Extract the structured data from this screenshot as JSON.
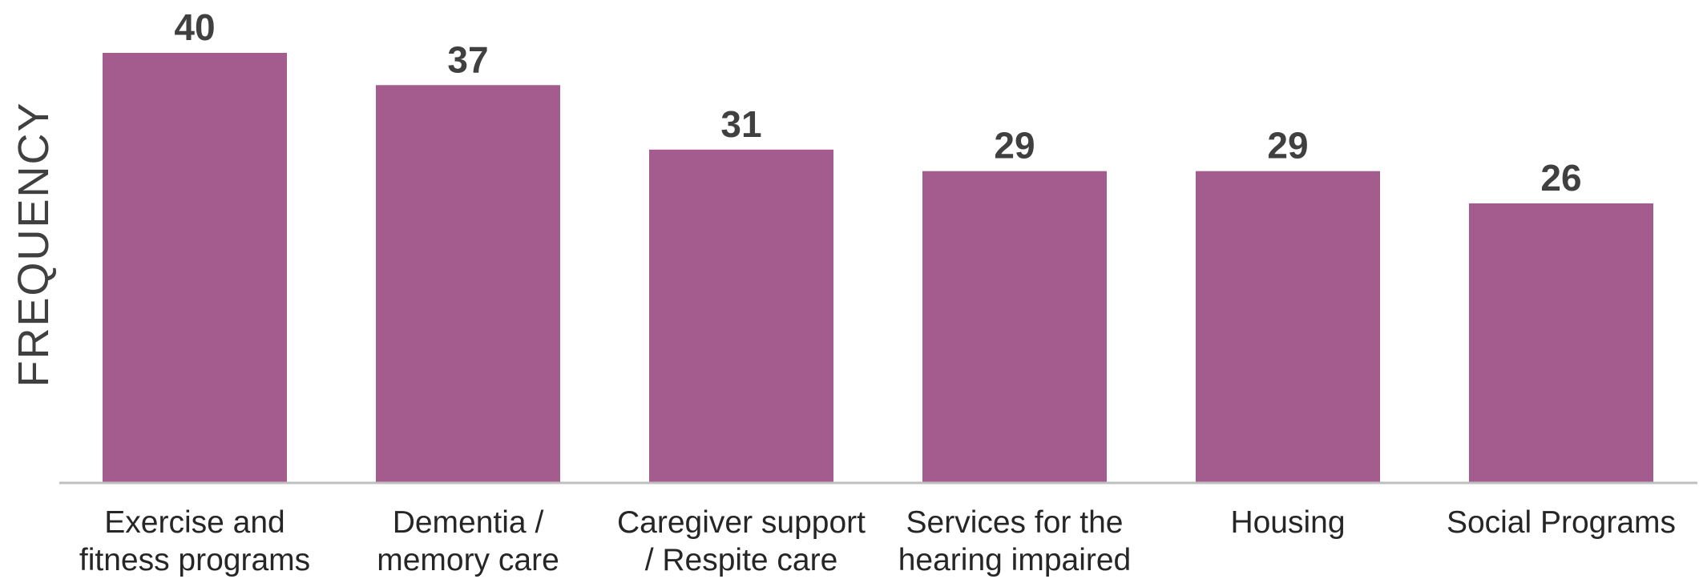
{
  "chart_data": {
    "type": "bar",
    "title": "",
    "xlabel": "",
    "ylabel": "FREQUENCY",
    "categories": [
      [
        "Exercise and",
        "fitness programs"
      ],
      [
        "Dementia /",
        "memory care"
      ],
      [
        "Caregiver support",
        "/ Respite care"
      ],
      [
        "Services for the",
        "hearing impaired"
      ],
      [
        "Housing"
      ],
      [
        "Social Programs"
      ]
    ],
    "values": [
      40,
      37,
      31,
      29,
      29,
      26
    ],
    "ylim": [
      0,
      40
    ],
    "grid": false,
    "data_labels": true,
    "colors": {
      "bar": "#a45b8e",
      "axis": "#bfbfbf",
      "label_text": "#404040"
    }
  }
}
